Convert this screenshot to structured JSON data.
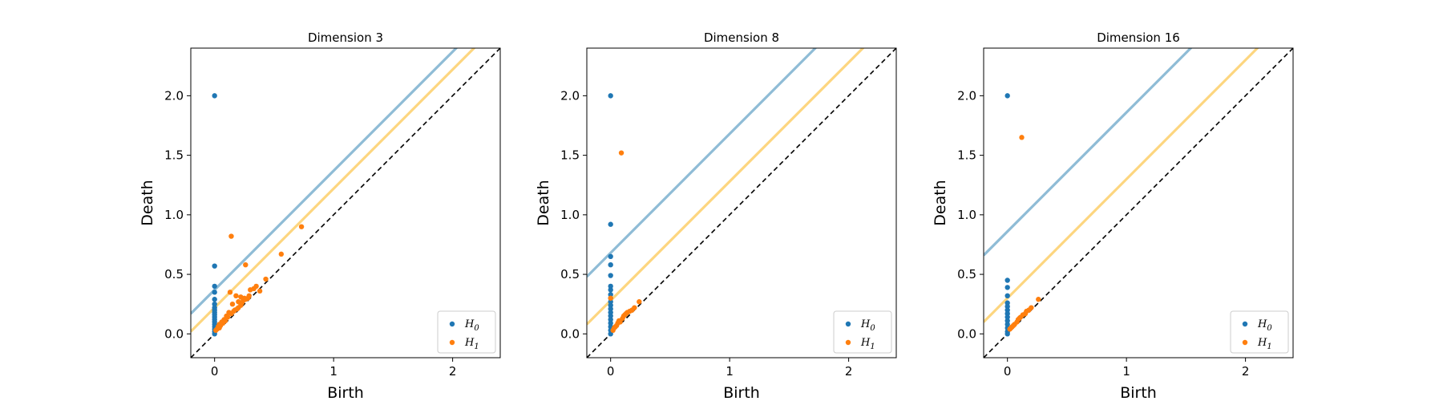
{
  "colors": {
    "h0": "#1f77b4",
    "h1": "#ff7f0e",
    "band_h0": "#8fbcd6",
    "band_h1": "#fdd680",
    "diagonal": "#000000"
  },
  "chart_data": [
    {
      "type": "scatter",
      "title": "Dimension 3",
      "xlabel": "Birth",
      "ylabel": "Death",
      "xlim": [
        -0.2,
        2.4
      ],
      "ylim": [
        -0.2,
        2.4
      ],
      "xticks": [
        0,
        1,
        2
      ],
      "xtick_labels": [
        "0",
        "1",
        "2"
      ],
      "yticks": [
        0.0,
        0.5,
        1.0,
        1.5,
        2.0
      ],
      "ytick_labels": [
        "0.0",
        "0.5",
        "1.0",
        "1.5",
        "2.0"
      ],
      "legend": {
        "position": "lower right",
        "entries": [
          "H0",
          "H1"
        ]
      },
      "bands": [
        {
          "series": "H0",
          "offset": 0.37
        },
        {
          "series": "H1",
          "offset": 0.22
        }
      ],
      "series": [
        {
          "name": "H0",
          "points": [
            [
              0,
              2.0
            ],
            [
              0,
              0.57
            ],
            [
              0,
              0.4
            ],
            [
              0,
              0.35
            ],
            [
              0,
              0.29
            ],
            [
              0,
              0.25
            ],
            [
              0,
              0.22
            ],
            [
              0,
              0.2
            ],
            [
              0,
              0.18
            ],
            [
              0,
              0.16
            ],
            [
              0,
              0.14
            ],
            [
              0,
              0.12
            ],
            [
              0,
              0.1
            ],
            [
              0,
              0.08
            ],
            [
              0,
              0.06
            ],
            [
              0,
              0.04
            ],
            [
              0,
              0.02
            ],
            [
              0,
              0.0
            ]
          ]
        },
        {
          "name": "H1",
          "points": [
            [
              0.14,
              0.82
            ],
            [
              0.26,
              0.58
            ],
            [
              0.73,
              0.9
            ],
            [
              0.56,
              0.67
            ],
            [
              0.43,
              0.46
            ],
            [
              0.13,
              0.35
            ],
            [
              0.18,
              0.32
            ],
            [
              0.22,
              0.31
            ],
            [
              0.25,
              0.3
            ],
            [
              0.2,
              0.27
            ],
            [
              0.28,
              0.3
            ],
            [
              0.3,
              0.37
            ],
            [
              0.33,
              0.38
            ],
            [
              0.35,
              0.4
            ],
            [
              0.38,
              0.36
            ],
            [
              0.15,
              0.25
            ],
            [
              0.22,
              0.24
            ],
            [
              0.24,
              0.28
            ],
            [
              0.12,
              0.18
            ],
            [
              0.17,
              0.2
            ],
            [
              0.2,
              0.22
            ],
            [
              0.1,
              0.15
            ],
            [
              0.14,
              0.17
            ],
            [
              0.08,
              0.12
            ],
            [
              0.11,
              0.14
            ],
            [
              0.06,
              0.1
            ],
            [
              0.09,
              0.11
            ],
            [
              0.04,
              0.08
            ],
            [
              0.07,
              0.09
            ],
            [
              0.03,
              0.06
            ],
            [
              0.05,
              0.07
            ],
            [
              0.02,
              0.04
            ],
            [
              0.04,
              0.05
            ],
            [
              0.01,
              0.03
            ],
            [
              0.16,
              0.19
            ],
            [
              0.19,
              0.21
            ],
            [
              0.26,
              0.29
            ],
            [
              0.29,
              0.32
            ],
            [
              0.23,
              0.26
            ]
          ]
        }
      ]
    },
    {
      "type": "scatter",
      "title": "Dimension 8",
      "xlabel": "Birth",
      "ylabel": "Death",
      "xlim": [
        -0.2,
        2.4
      ],
      "ylim": [
        -0.2,
        2.4
      ],
      "xticks": [
        0,
        1,
        2
      ],
      "xtick_labels": [
        "0",
        "1",
        "2"
      ],
      "yticks": [
        0.0,
        0.5,
        1.0,
        1.5,
        2.0
      ],
      "ytick_labels": [
        "0.0",
        "0.5",
        "1.0",
        "1.5",
        "2.0"
      ],
      "legend": {
        "position": "lower right",
        "entries": [
          "H0",
          "H1"
        ]
      },
      "bands": [
        {
          "series": "H0",
          "offset": 0.68
        },
        {
          "series": "H1",
          "offset": 0.28
        }
      ],
      "series": [
        {
          "name": "H0",
          "points": [
            [
              0,
              2.0
            ],
            [
              0,
              0.92
            ],
            [
              0,
              0.65
            ],
            [
              0,
              0.58
            ],
            [
              0,
              0.49
            ],
            [
              0,
              0.4
            ],
            [
              0,
              0.37
            ],
            [
              0,
              0.33
            ],
            [
              0,
              0.3
            ],
            [
              0,
              0.27
            ],
            [
              0,
              0.24
            ],
            [
              0,
              0.21
            ],
            [
              0,
              0.18
            ],
            [
              0,
              0.15
            ],
            [
              0,
              0.12
            ],
            [
              0,
              0.09
            ],
            [
              0,
              0.06
            ],
            [
              0,
              0.03
            ],
            [
              0,
              0.0
            ]
          ]
        },
        {
          "name": "H1",
          "points": [
            [
              0.09,
              1.52
            ],
            [
              0,
              0.3
            ],
            [
              0.14,
              0.18
            ],
            [
              0.16,
              0.19
            ],
            [
              0.12,
              0.16
            ],
            [
              0.2,
              0.22
            ],
            [
              0.1,
              0.13
            ],
            [
              0.08,
              0.1
            ],
            [
              0.06,
              0.09
            ],
            [
              0.05,
              0.07
            ],
            [
              0.04,
              0.06
            ],
            [
              0.03,
              0.05
            ],
            [
              0.02,
              0.03
            ],
            [
              0.24,
              0.27
            ],
            [
              0.11,
              0.15
            ],
            [
              0.07,
              0.11
            ],
            [
              0.13,
              0.17
            ],
            [
              0.18,
              0.2
            ]
          ]
        }
      ]
    },
    {
      "type": "scatter",
      "title": "Dimension 16",
      "xlabel": "Birth",
      "ylabel": "Death",
      "xlim": [
        -0.2,
        2.4
      ],
      "ylim": [
        -0.2,
        2.4
      ],
      "xticks": [
        0,
        1,
        2
      ],
      "xtick_labels": [
        "0",
        "1",
        "2"
      ],
      "yticks": [
        0.0,
        0.5,
        1.0,
        1.5,
        2.0
      ],
      "ytick_labels": [
        "0.0",
        "0.5",
        "1.0",
        "1.5",
        "2.0"
      ],
      "legend": {
        "position": "lower right",
        "entries": [
          "H0",
          "H1"
        ]
      },
      "bands": [
        {
          "series": "H0",
          "offset": 0.86
        },
        {
          "series": "H1",
          "offset": 0.3
        }
      ],
      "series": [
        {
          "name": "H0",
          "points": [
            [
              0,
              2.0
            ],
            [
              0,
              0.45
            ],
            [
              0,
              0.39
            ],
            [
              0,
              0.32
            ],
            [
              0,
              0.26
            ],
            [
              0,
              0.23
            ],
            [
              0,
              0.2
            ],
            [
              0,
              0.17
            ],
            [
              0,
              0.14
            ],
            [
              0,
              0.11
            ],
            [
              0,
              0.08
            ],
            [
              0,
              0.05
            ],
            [
              0,
              0.02
            ],
            [
              0,
              0.0
            ]
          ]
        },
        {
          "name": "H1",
          "points": [
            [
              0.12,
              1.65
            ],
            [
              0.26,
              0.29
            ],
            [
              0.2,
              0.22
            ],
            [
              0.16,
              0.19
            ],
            [
              0.13,
              0.16
            ],
            [
              0.1,
              0.13
            ],
            [
              0.08,
              0.1
            ],
            [
              0.06,
              0.08
            ],
            [
              0.05,
              0.07
            ],
            [
              0.04,
              0.06
            ],
            [
              0.03,
              0.05
            ],
            [
              0.02,
              0.04
            ],
            [
              0.11,
              0.14
            ],
            [
              0.15,
              0.17
            ],
            [
              0.09,
              0.12
            ],
            [
              0.18,
              0.2
            ]
          ]
        }
      ]
    }
  ]
}
